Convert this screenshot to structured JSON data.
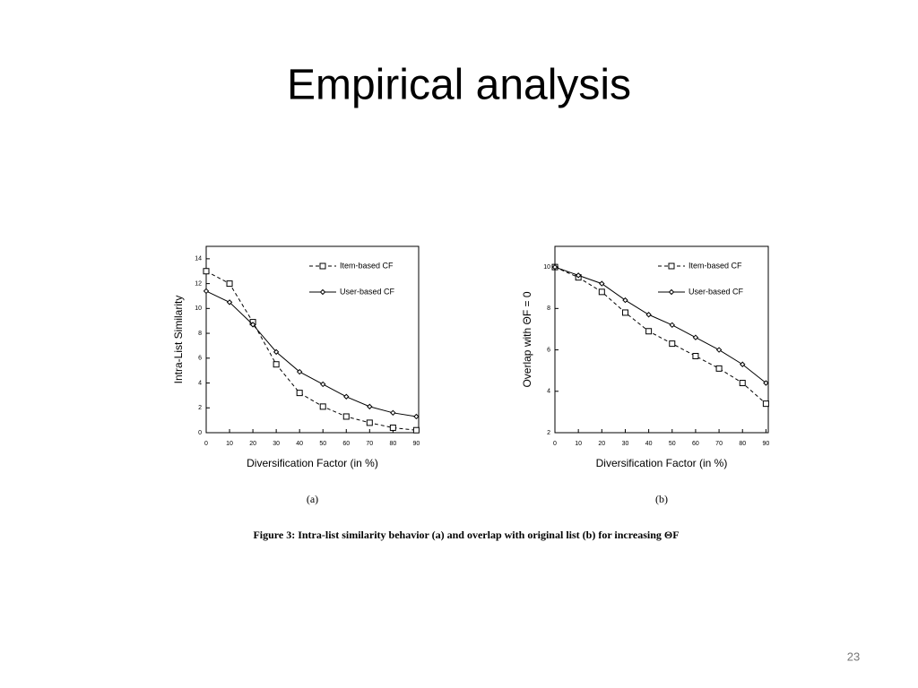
{
  "title": "Empirical analysis",
  "caption": "Figure 3: Intra-list similarity behavior (a) and overlap with original list (b) for increasing ΘF",
  "page_number": "23",
  "chart_data": [
    {
      "type": "line",
      "sub_label": "(a)",
      "x_label": "Diversification Factor (in %)",
      "y_label": "Intra-List Similarity",
      "x": [
        0,
        10,
        20,
        30,
        40,
        50,
        60,
        70,
        80,
        90
      ],
      "xlim": [
        0,
        91
      ],
      "xticks": [
        0,
        10,
        20,
        30,
        40,
        50,
        60,
        70,
        80,
        90
      ],
      "ylim": [
        0,
        15
      ],
      "yticks": [
        0,
        2,
        4,
        6,
        8,
        10,
        12,
        14
      ],
      "series": [
        {
          "name": "Item-based CF",
          "color": "#000000",
          "line_style": "dashed",
          "marker": "square",
          "values": [
            13,
            12,
            8.9,
            5.5,
            3.2,
            2.1,
            1.3,
            0.8,
            0.4,
            0.2
          ]
        },
        {
          "name": "User-based CF",
          "color": "#000000",
          "line_style": "solid",
          "marker": "diamond",
          "values": [
            11.4,
            10.5,
            8.7,
            6.5,
            4.9,
            3.9,
            2.9,
            2.1,
            1.6,
            1.3
          ]
        }
      ]
    },
    {
      "type": "line",
      "sub_label": "(b)",
      "x_label": "Diversification Factor (in %)",
      "y_label": "Overlap with ΘF = 0",
      "x": [
        0,
        10,
        20,
        30,
        40,
        50,
        60,
        70,
        80,
        90
      ],
      "xlim": [
        0,
        91
      ],
      "xticks": [
        0,
        10,
        20,
        30,
        40,
        50,
        60,
        70,
        80,
        90
      ],
      "ylim": [
        2,
        11
      ],
      "yticks": [
        2,
        4,
        6,
        8,
        10
      ],
      "series": [
        {
          "name": "Item-based CF",
          "color": "#000000",
          "line_style": "dashed",
          "marker": "square",
          "values": [
            10,
            9.5,
            8.8,
            7.8,
            6.9,
            6.3,
            5.7,
            5.1,
            4.4,
            3.4
          ]
        },
        {
          "name": "User-based CF",
          "color": "#000000",
          "line_style": "solid",
          "marker": "diamond",
          "values": [
            10,
            9.6,
            9.2,
            8.4,
            7.7,
            7.2,
            6.6,
            6.0,
            5.3,
            4.4
          ]
        }
      ]
    }
  ]
}
